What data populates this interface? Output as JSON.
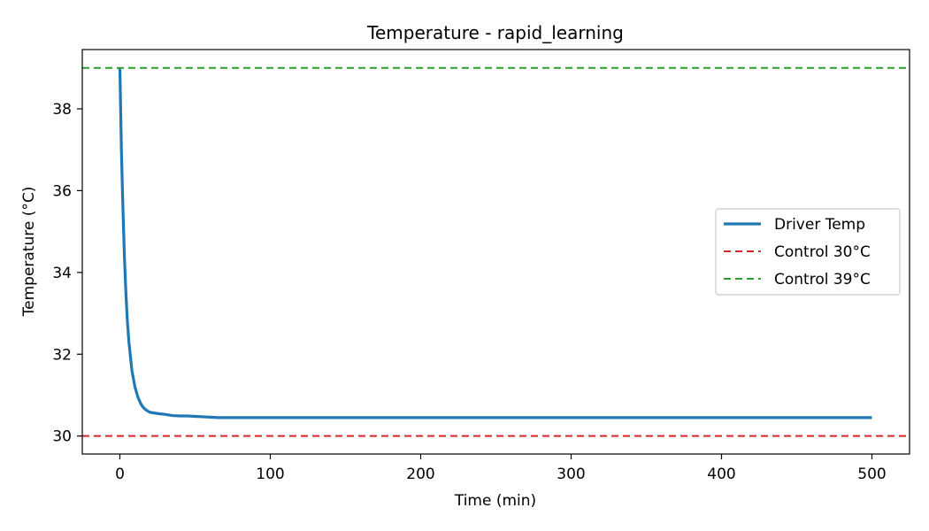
{
  "chart_data": {
    "type": "line",
    "title": "Temperature - rapid_learning",
    "xlabel": "Time (min)",
    "ylabel": "Temperature (°C)",
    "xlim": [
      -25,
      525
    ],
    "ylim": [
      29.56,
      39.45
    ],
    "xticks": [
      0,
      100,
      200,
      300,
      400,
      500
    ],
    "yticks": [
      30,
      32,
      34,
      36,
      38
    ],
    "grid": false,
    "legend_position": "center-right",
    "series": [
      {
        "name": "Driver Temp",
        "color": "#1f77b4",
        "style": "solid",
        "x": [
          0,
          1,
          2,
          3,
          4,
          5,
          6,
          8,
          10,
          12,
          14,
          16,
          18,
          20,
          25,
          30,
          35,
          40,
          45,
          50,
          55,
          60,
          65,
          70,
          80,
          100,
          150,
          200,
          250,
          300,
          350,
          400,
          450,
          500
        ],
        "y": [
          39.0,
          37.0,
          35.6,
          34.4,
          33.5,
          32.8,
          32.3,
          31.6,
          31.2,
          30.95,
          30.78,
          30.68,
          30.62,
          30.58,
          30.55,
          30.53,
          30.5,
          30.49,
          30.49,
          30.48,
          30.47,
          30.46,
          30.45,
          30.45,
          30.45,
          30.45,
          30.45,
          30.45,
          30.45,
          30.45,
          30.45,
          30.45,
          30.45,
          30.45
        ]
      },
      {
        "name": "Control 30°C",
        "color": "#d62728",
        "style": "dashed",
        "hline": 30
      },
      {
        "name": "Control 39°C",
        "color": "#2ca02c",
        "style": "dashed",
        "hline": 39
      }
    ]
  }
}
